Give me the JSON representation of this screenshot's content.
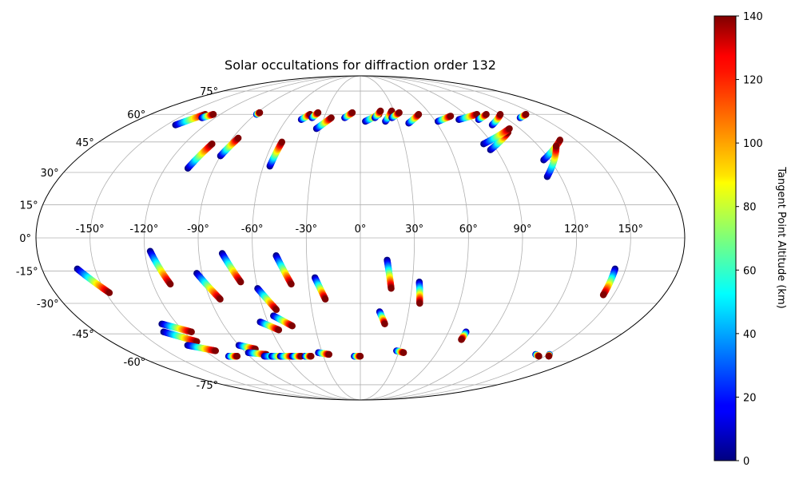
{
  "chart_data": {
    "type": "scatter",
    "projection": "mollweide",
    "title": "Solar occultations for diffraction order 132",
    "grid": true,
    "longitude_ticks": [
      -150,
      -120,
      -90,
      -60,
      -30,
      0,
      30,
      60,
      90,
      120,
      150
    ],
    "longitude_tick_labels": [
      "-150°",
      "-120°",
      "-90°",
      "-60°",
      "-30°",
      "0°",
      "30°",
      "60°",
      "90°",
      "120°",
      "150°"
    ],
    "latitude_ticks": [
      -75,
      -60,
      -45,
      -30,
      -15,
      0,
      15,
      30,
      45,
      60,
      75
    ],
    "latitude_tick_labels": [
      "-75°",
      "-60°",
      "-45°",
      "-30°",
      "-15°",
      "0°",
      "15°",
      "30°",
      "45°",
      "60°",
      "75°"
    ],
    "colorbar": {
      "label": "Tangent Point Altitude (km)",
      "colormap": "jet",
      "range": [
        0,
        140
      ],
      "ticks": [
        0,
        20,
        40,
        60,
        80,
        100,
        120,
        140
      ],
      "tick_labels": [
        "0",
        "20",
        "40",
        "60",
        "80",
        "100",
        "120",
        "140"
      ]
    },
    "tracks": [
      {
        "lon": [
          -160,
          -148
        ],
        "lat": [
          -14,
          -25
        ],
        "alt": [
          0,
          140
        ]
      },
      {
        "lon": [
          -117,
          -110
        ],
        "lat": [
          -6,
          -21
        ],
        "alt": [
          0,
          140
        ]
      },
      {
        "lon": [
          -93,
          -84
        ],
        "lat": [
          -16,
          -28
        ],
        "alt": [
          0,
          140
        ]
      },
      {
        "lon": [
          -77,
          -69
        ],
        "lat": [
          -7,
          -20
        ],
        "alt": [
          0,
          140
        ]
      },
      {
        "lon": [
          -60,
          -52
        ],
        "lat": [
          -23,
          -33
        ],
        "alt": [
          0,
          140
        ]
      },
      {
        "lon": [
          -47,
          -40
        ],
        "lat": [
          -8,
          -21
        ],
        "alt": [
          0,
          140
        ]
      },
      {
        "lon": [
          -26,
          -21
        ],
        "lat": [
          -18,
          -28
        ],
        "alt": [
          0,
          140
        ]
      },
      {
        "lon": [
          15,
          18
        ],
        "lat": [
          -10,
          -23
        ],
        "alt": [
          0,
          140
        ]
      },
      {
        "lon": [
          34,
          36
        ],
        "lat": [
          -20,
          -30
        ],
        "alt": [
          0,
          140
        ]
      },
      {
        "lon": [
          12,
          16
        ],
        "lat": [
          -34,
          -40
        ],
        "alt": [
          0,
          140
        ]
      },
      {
        "lon": [
          144,
          144
        ],
        "lat": [
          -14,
          -26
        ],
        "alt": [
          0,
          140
        ]
      },
      {
        "lon": [
          -65,
          -55
        ],
        "lat": [
          -39,
          -43
        ],
        "alt": [
          0,
          140
        ]
      },
      {
        "lon": [
          -55,
          -45
        ],
        "lat": [
          -36,
          -41
        ],
        "alt": [
          0,
          140
        ]
      },
      {
        "lon": [
          -130,
          -115
        ],
        "lat": [
          -40,
          -44
        ],
        "alt": [
          0,
          140
        ]
      },
      {
        "lon": [
          -134,
          -118
        ],
        "lat": [
          -44,
          -49
        ],
        "alt": [
          0,
          140
        ]
      },
      {
        "lon": [
          -128,
          -112
        ],
        "lat": [
          -51,
          -54
        ],
        "alt": [
          0,
          140
        ]
      },
      {
        "lon": [
          72,
          72
        ],
        "lat": [
          -44,
          -48
        ],
        "alt": [
          0,
          140
        ]
      },
      {
        "lon": [
          -90,
          -80
        ],
        "lat": [
          -51,
          -53
        ],
        "alt": [
          0,
          140
        ]
      },
      {
        "lon": [
          -88,
          -75
        ],
        "lat": [
          -55,
          -56
        ],
        "alt": [
          0,
          140
        ]
      },
      {
        "lon": [
          -107,
          -100
        ],
        "lat": [
          -57,
          -57
        ],
        "alt": [
          0,
          140
        ]
      },
      {
        "lon": [
          -78,
          -64
        ],
        "lat": [
          -57,
          -57
        ],
        "alt": [
          0,
          140
        ]
      },
      {
        "lon": [
          -72,
          -62
        ],
        "lat": [
          -57,
          -57
        ],
        "alt": [
          0,
          140
        ]
      },
      {
        "lon": [
          -65,
          -55
        ],
        "lat": [
          -57,
          -57
        ],
        "alt": [
          0,
          140
        ]
      },
      {
        "lon": [
          -55,
          -48
        ],
        "lat": [
          -57,
          -57
        ],
        "alt": [
          0,
          140
        ]
      },
      {
        "lon": [
          -45,
          -40
        ],
        "lat": [
          -57,
          -57
        ],
        "alt": [
          0,
          140
        ]
      },
      {
        "lon": [
          -33,
          -25
        ],
        "lat": [
          -55,
          -56
        ],
        "alt": [
          0,
          140
        ]
      },
      {
        "lon": [
          -5,
          0
        ],
        "lat": [
          -57,
          -57
        ],
        "alt": [
          0,
          140
        ]
      },
      {
        "lon": [
          28,
          34
        ],
        "lat": [
          -54,
          -55
        ],
        "alt": [
          0,
          140
        ]
      },
      {
        "lon": [
          140,
          145
        ],
        "lat": [
          -56,
          -57
        ],
        "alt": [
          0,
          140
        ]
      },
      {
        "lon": [
          151,
          153
        ],
        "lat": [
          -56,
          -57
        ],
        "alt": [
          0,
          140
        ]
      },
      {
        "lon": [
          -143,
          -133
        ],
        "lat": [
          54,
          60
        ],
        "alt": [
          0,
          140
        ]
      },
      {
        "lon": [
          -131,
          -126
        ],
        "lat": [
          58,
          60
        ],
        "alt": [
          0,
          140
        ]
      },
      {
        "lon": [
          -106,
          -101
        ],
        "lat": [
          32,
          44
        ],
        "alt": [
          0,
          140
        ]
      },
      {
        "lon": [
          -90,
          -86
        ],
        "lat": [
          38,
          47
        ],
        "alt": [
          0,
          140
        ]
      },
      {
        "lon": [
          -89,
          -88
        ],
        "lat": [
          60,
          61
        ],
        "alt": [
          0,
          140
        ]
      },
      {
        "lon": [
          -56,
          -54
        ],
        "lat": [
          33,
          45
        ],
        "alt": [
          0,
          140
        ]
      },
      {
        "lon": [
          -48,
          -43
        ],
        "lat": [
          57,
          60
        ],
        "alt": [
          0,
          140
        ]
      },
      {
        "lon": [
          -40,
          -37
        ],
        "lat": [
          58,
          61
        ],
        "alt": [
          0,
          140
        ]
      },
      {
        "lon": [
          -33,
          -24
        ],
        "lat": [
          52,
          58
        ],
        "alt": [
          0,
          140
        ]
      },
      {
        "lon": [
          -13,
          -7
        ],
        "lat": [
          58,
          61
        ],
        "alt": [
          0,
          140
        ]
      },
      {
        "lon": [
          4,
          16
        ],
        "lat": [
          56,
          60
        ],
        "alt": [
          0,
          140
        ]
      },
      {
        "lon": [
          12,
          18
        ],
        "lat": [
          58,
          62
        ],
        "alt": [
          0,
          140
        ]
      },
      {
        "lon": [
          20,
          28
        ],
        "lat": [
          56,
          62
        ],
        "alt": [
          0,
          140
        ]
      },
      {
        "lon": [
          26,
          34
        ],
        "lat": [
          58,
          61
        ],
        "alt": [
          0,
          140
        ]
      },
      {
        "lon": [
          38,
          50
        ],
        "lat": [
          55,
          60
        ],
        "alt": [
          0,
          140
        ]
      },
      {
        "lon": [
          62,
          76
        ],
        "lat": [
          56,
          59
        ],
        "alt": [
          0,
          140
        ]
      },
      {
        "lon": [
          80,
          100
        ],
        "lat": [
          57,
          60
        ],
        "alt": [
          0,
          140
        ]
      },
      {
        "lon": [
          96,
          108
        ],
        "lat": [
          57,
          60
        ],
        "alt": [
          0,
          140
        ]
      },
      {
        "lon": [
          102,
          120
        ],
        "lat": [
          54,
          60
        ],
        "alt": [
          0,
          140
        ]
      },
      {
        "lon": [
          86,
          108
        ],
        "lat": [
          41,
          50
        ],
        "alt": [
          0,
          140
        ]
      },
      {
        "lon": [
          84,
          112
        ],
        "lat": [
          44,
          52
        ],
        "alt": [
          0,
          140
        ]
      },
      {
        "lon": [
          116,
          139
        ],
        "lat": [
          36,
          46
        ],
        "alt": [
          0,
          140
        ]
      },
      {
        "lon": [
          112,
          132
        ],
        "lat": [
          28,
          43
        ],
        "alt": [
          0,
          140
        ]
      },
      {
        "lon": [
          132,
          142
        ],
        "lat": [
          58,
          60
        ],
        "alt": [
          0,
          140
        ]
      }
    ]
  }
}
